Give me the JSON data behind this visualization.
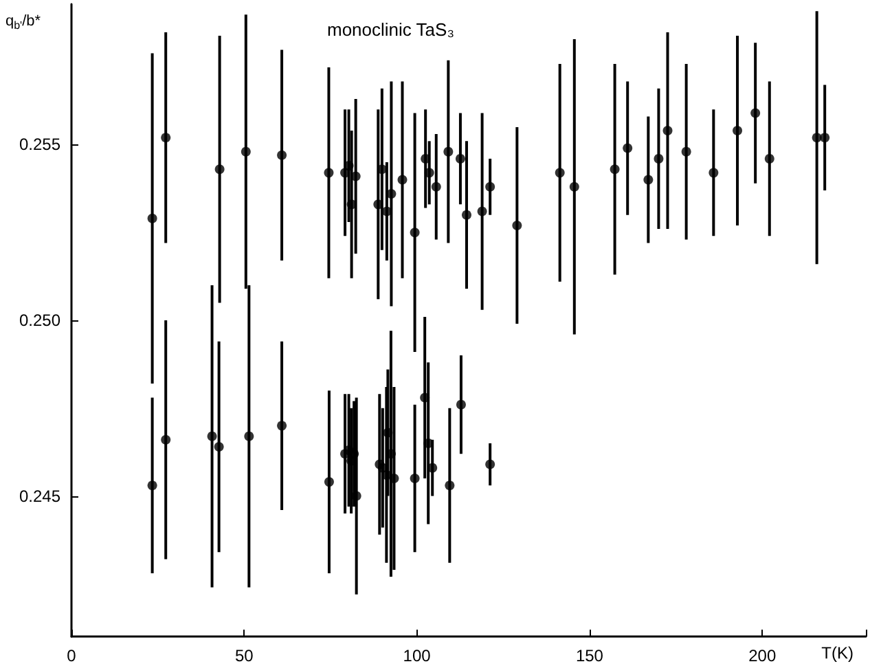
{
  "chart_data": {
    "type": "scatter",
    "title": "monoclinic TaS₃",
    "xlabel": "T(K)",
    "ylabel": "q$_{b'}$/b*",
    "xlim": [
      0,
      230
    ],
    "xticks": [
      0,
      50,
      100,
      150,
      200
    ],
    "ylim": [
      0.241,
      0.259
    ],
    "yticks": [
      {
        "value": 0.245,
        "label": "0.245"
      },
      {
        "value": 0.25,
        "label": "0.250"
      },
      {
        "value": 0.255,
        "label": "0.255"
      }
    ],
    "grid": false,
    "marker": "circle",
    "series": [
      {
        "color": "#000000",
        "x": [
          23.4,
          27.3,
          42.9,
          50.5,
          60.9,
          74.5,
          79.2,
          80.3,
          81.1,
          82.3,
          88.8,
          89.9,
          91.3,
          92.6,
          95.8,
          99.4,
          102.5,
          103.6,
          105.6,
          109.1,
          112.6,
          114.4,
          118.9,
          121.2,
          129,
          141.4,
          145.6,
          157.3,
          161,
          167,
          170,
          172.6,
          178,
          185.9,
          192.8,
          198,
          202.1,
          215.8,
          218.1,
          23.4,
          27.3,
          40.7,
          42.7,
          51.4,
          60.9,
          74.6,
          79.2,
          80.3,
          81,
          81.8,
          82.5,
          89.2,
          90.1,
          91.2,
          91.6,
          92.5,
          93.4,
          99.4,
          102.3,
          103.3,
          104.5,
          109.5,
          112.8,
          121.2
        ],
        "values": [
          0.2529,
          0.2552,
          0.2543,
          0.2548,
          0.2547,
          0.2542,
          0.2542,
          0.2544,
          0.2533,
          0.2541,
          0.2533,
          0.2543,
          0.2531,
          0.2536,
          0.254,
          0.2525,
          0.2546,
          0.2542,
          0.2538,
          0.2548,
          0.2546,
          0.253,
          0.2531,
          0.2538,
          0.2527,
          0.2542,
          0.2538,
          0.2543,
          0.2549,
          0.254,
          0.2546,
          0.2554,
          0.2548,
          0.2542,
          0.2554,
          0.2559,
          0.2546,
          0.2552,
          0.2552,
          0.2453,
          0.2466,
          0.2467,
          0.2464,
          0.2467,
          0.247,
          0.2454,
          0.2462,
          0.2463,
          0.246,
          0.2462,
          0.245,
          0.2459,
          0.2458,
          0.2456,
          0.2468,
          0.2462,
          0.2455,
          0.2455,
          0.2478,
          0.2465,
          0.2458,
          0.2453,
          0.2476,
          0.2459
        ],
        "errors": [
          0.0047,
          0.003,
          0.0038,
          0.0039,
          0.003,
          0.003,
          0.0018,
          0.0016,
          0.0021,
          0.0022,
          0.0027,
          0.0023,
          0.0014,
          0.0032,
          0.0028,
          0.0034,
          0.0014,
          0.0009,
          0.0015,
          0.0026,
          0.0013,
          0.0021,
          0.0028,
          0.0008,
          0.0028,
          0.0031,
          0.0042,
          0.003,
          0.0019,
          0.0018,
          0.002,
          0.0028,
          0.0025,
          0.0018,
          0.0027,
          0.002,
          0.0022,
          0.0036,
          0.0015,
          0.0025,
          0.0034,
          0.0043,
          0.003,
          0.0043,
          0.0024,
          0.0026,
          0.0017,
          0.0016,
          0.0015,
          0.0015,
          0.0028,
          0.002,
          0.0017,
          0.0025,
          0.0018,
          0.0035,
          0.0026,
          0.0021,
          0.0023,
          0.0023,
          0.0008,
          0.0022,
          0.0014,
          0.0006
        ]
      }
    ]
  }
}
